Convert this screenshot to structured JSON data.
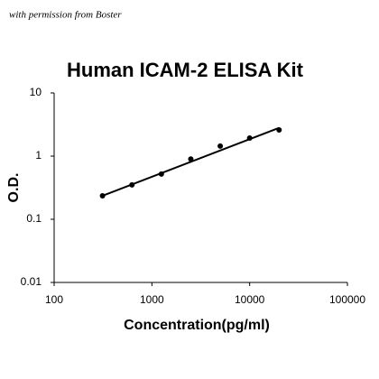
{
  "watermark": "with permission from Boster",
  "chart_data": {
    "type": "scatter",
    "title": "Human ICAM-2 ELISA Kit",
    "xlabel": "Concentration(pg/ml)",
    "ylabel": "O.D.",
    "x": [
      312.5,
      625,
      1250,
      2500,
      5000,
      10000,
      20000
    ],
    "values": [
      0.235,
      0.35,
      0.52,
      0.9,
      1.44,
      1.93,
      2.6
    ],
    "color": "#000000",
    "trendline": {
      "x": [
        300,
        20000
      ],
      "values": [
        0.23,
        2.8
      ]
    },
    "xscale": "log",
    "yscale": "log",
    "xlim": [
      100,
      100000
    ],
    "xticks": [
      100,
      1000,
      10000,
      100000
    ],
    "ylim": [
      0.01,
      10
    ],
    "yticks": [
      0.01,
      0.1,
      1,
      10
    ],
    "grid": false
  }
}
